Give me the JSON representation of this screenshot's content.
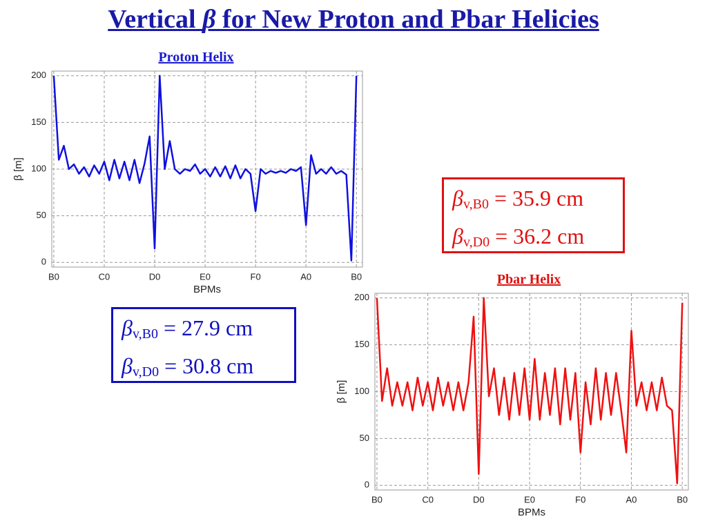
{
  "title": {
    "pre": "Vertical ",
    "symbol": "β",
    "post": " for New Proton and Pbar Helicies"
  },
  "chart_data": [
    {
      "type": "line",
      "title": "Proton Helix",
      "xlabel": "BPMs",
      "ylabel": "β [m]",
      "color": "#1010e0",
      "grid": true,
      "x": [
        0,
        0.1,
        0.2,
        0.3,
        0.4,
        0.5,
        0.6,
        0.7,
        0.8,
        0.9,
        1,
        1.1,
        1.2,
        1.3,
        1.4,
        1.5,
        1.6,
        1.7,
        1.8,
        1.9,
        2,
        2.1,
        2.2,
        2.3,
        2.4,
        2.5,
        2.6,
        2.7,
        2.8,
        2.9,
        3,
        3.1,
        3.2,
        3.3,
        3.4,
        3.5,
        3.6,
        3.7,
        3.8,
        3.9,
        4,
        4.1,
        4.2,
        4.3,
        4.4,
        4.5,
        4.6,
        4.7,
        4.8,
        4.9,
        5,
        5.1,
        5.2,
        5.3,
        5.4,
        5.5,
        5.6,
        5.7,
        5.8,
        5.9,
        6
      ],
      "values": [
        200,
        110,
        125,
        100,
        105,
        95,
        102,
        92,
        104,
        95,
        108,
        88,
        110,
        90,
        108,
        88,
        110,
        85,
        106,
        135,
        15,
        200,
        100,
        130,
        100,
        95,
        100,
        98,
        105,
        95,
        100,
        92,
        102,
        92,
        103,
        90,
        104,
        90,
        100,
        95,
        55,
        100,
        95,
        98,
        96,
        98,
        96,
        100,
        98,
        102,
        40,
        115,
        95,
        100,
        95,
        102,
        95,
        98,
        94,
        2,
        200
      ],
      "xlim": [
        -0.04,
        6.12
      ],
      "xticks": [
        {
          "value": 0,
          "label": "B0"
        },
        {
          "value": 1,
          "label": "C0"
        },
        {
          "value": 2,
          "label": "D0"
        },
        {
          "value": 3,
          "label": "E0"
        },
        {
          "value": 4,
          "label": "F0"
        },
        {
          "value": 5,
          "label": "A0"
        },
        {
          "value": 6,
          "label": "B0"
        }
      ],
      "ylim": [
        -5,
        205
      ],
      "yticks": [
        0,
        50,
        100,
        150,
        200
      ]
    },
    {
      "type": "line",
      "title": "Pbar Helix",
      "xlabel": "BPMs",
      "ylabel": "β [m]",
      "color": "#f01010",
      "grid": true,
      "x": [
        0,
        0.1,
        0.2,
        0.3,
        0.4,
        0.5,
        0.6,
        0.7,
        0.8,
        0.9,
        1,
        1.1,
        1.2,
        1.3,
        1.4,
        1.5,
        1.6,
        1.7,
        1.8,
        1.9,
        2,
        2.1,
        2.2,
        2.3,
        2.4,
        2.5,
        2.6,
        2.7,
        2.8,
        2.9,
        3,
        3.1,
        3.2,
        3.3,
        3.4,
        3.5,
        3.6,
        3.7,
        3.8,
        3.9,
        4,
        4.1,
        4.2,
        4.3,
        4.4,
        4.5,
        4.6,
        4.7,
        4.8,
        4.9,
        5,
        5.1,
        5.2,
        5.3,
        5.4,
        5.5,
        5.6,
        5.7,
        5.8,
        5.9,
        6
      ],
      "values": [
        200,
        90,
        125,
        85,
        110,
        85,
        110,
        80,
        115,
        85,
        110,
        80,
        115,
        85,
        110,
        80,
        110,
        80,
        110,
        180,
        12,
        200,
        95,
        125,
        75,
        115,
        70,
        120,
        75,
        125,
        70,
        135,
        70,
        120,
        75,
        125,
        65,
        125,
        70,
        120,
        35,
        110,
        65,
        125,
        70,
        120,
        75,
        120,
        80,
        35,
        165,
        85,
        110,
        80,
        110,
        80,
        115,
        85,
        80,
        2,
        195
      ],
      "xlim": [
        -0.04,
        6.12
      ],
      "xticks": [
        {
          "value": 0,
          "label": "B0"
        },
        {
          "value": 1,
          "label": "C0"
        },
        {
          "value": 2,
          "label": "D0"
        },
        {
          "value": 3,
          "label": "E0"
        },
        {
          "value": 4,
          "label": "F0"
        },
        {
          "value": 5,
          "label": "A0"
        },
        {
          "value": 6,
          "label": "B0"
        }
      ],
      "ylim": [
        -5,
        205
      ],
      "yticks": [
        0,
        50,
        100,
        150,
        200
      ]
    }
  ],
  "boxes": [
    {
      "lines": [
        {
          "symbol": "β",
          "sub": "v,B0",
          "text": " = 35.9 cm"
        },
        {
          "symbol": "β",
          "sub": "v,D0",
          "text": " = 36.2 cm"
        }
      ]
    },
    {
      "lines": [
        {
          "symbol": "β",
          "sub": "v,B0",
          "text": " = 27.9 cm"
        },
        {
          "symbol": "β",
          "sub": "v,D0",
          "text": " = 30.8 cm"
        }
      ]
    }
  ]
}
